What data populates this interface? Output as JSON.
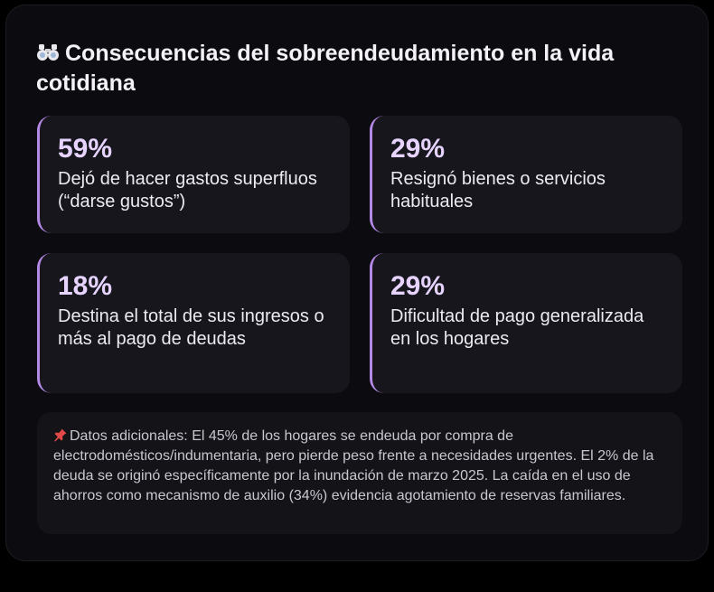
{
  "header": {
    "icon": "binoculars-icon",
    "title": "Consecuencias del sobreendeudamiento en la vida cotidiana"
  },
  "stats": [
    {
      "value": "59%",
      "label": "Dejó de hacer gastos superfluos (“darse gustos”)"
    },
    {
      "value": "29%",
      "label": "Resignó bienes o servicios habituales"
    },
    {
      "value": "18%",
      "label": "Destina el total de sus ingresos o más al pago de deudas"
    },
    {
      "value": "29%",
      "label": "Dificultad de pago generalizada en los hogares"
    }
  ],
  "note": {
    "icon": "pushpin-icon",
    "text": "Datos adicionales: El 45% de los hogares se endeuda por compra de electrodomésticos/indumentaria, pero pierde peso frente a necesidades urgentes. El 2% de la deuda se originó específicamente por la inundación de marzo 2025. La caída en el uso de ahorros como mecanismo de auxilio (34%) evidencia agotamiento de reservas familiares."
  },
  "colors": {
    "accent": "#b48ae6",
    "value_text": "#e6d4ff",
    "card_bg": "#0c0c10",
    "stat_bg": "#17161c"
  }
}
